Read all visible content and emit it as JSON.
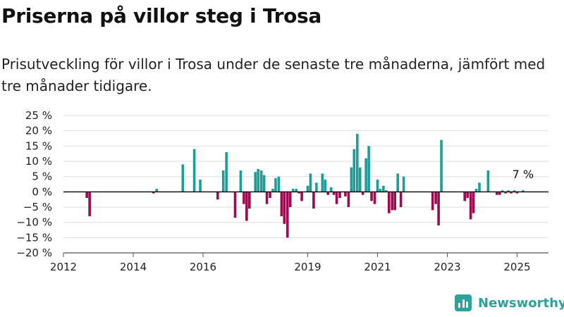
{
  "page": {
    "title": "Priserna på villor steg i Trosa",
    "subtitle": "Prisutveckling för villor i Trosa under de senaste tre månaderna, jämfört med tre månader tidigare.",
    "brand": "Newsworthy"
  },
  "colors": {
    "positive": "#1a9e97",
    "negative": "#9c0b4f",
    "brand": "#2aa398"
  },
  "chart_data": {
    "type": "bar",
    "title": "",
    "xlabel": "",
    "ylabel": "",
    "x_unit": "year",
    "xlim": [
      2012,
      2025.9
    ],
    "ylim": [
      -20,
      25
    ],
    "y_ticks": [
      25,
      20,
      15,
      10,
      5,
      0,
      -5,
      -10,
      -15,
      -20
    ],
    "y_tick_labels": [
      "25 %",
      "20 %",
      "15 %",
      "10 %",
      "5 %",
      "0 %",
      "−5 %",
      "−10 %",
      "−15 %",
      "−20 %"
    ],
    "x_ticks": [
      2012,
      2014,
      2016,
      2019,
      2021,
      2023,
      2025
    ],
    "x_tick_labels": [
      "2012",
      "2014",
      "2016",
      "2019",
      "2021",
      "2023",
      "2025"
    ],
    "grid": true,
    "annotation": "7 %",
    "x": [
      2012.67,
      2012.75,
      2014.58,
      2014.67,
      2015.42,
      2015.75,
      2015.92,
      2016.42,
      2016.58,
      2016.67,
      2016.92,
      2017.08,
      2017.17,
      2017.25,
      2017.33,
      2017.5,
      2017.58,
      2017.67,
      2017.75,
      2017.83,
      2017.92,
      2018.0,
      2018.08,
      2018.17,
      2018.25,
      2018.33,
      2018.42,
      2018.5,
      2018.58,
      2018.67,
      2018.75,
      2018.83,
      2019.0,
      2019.08,
      2019.17,
      2019.25,
      2019.42,
      2019.5,
      2019.58,
      2019.67,
      2019.75,
      2019.83,
      2019.92,
      2020.08,
      2020.17,
      2020.25,
      2020.33,
      2020.42,
      2020.5,
      2020.58,
      2020.67,
      2020.75,
      2020.83,
      2020.92,
      2021.0,
      2021.08,
      2021.17,
      2021.25,
      2021.33,
      2021.42,
      2021.5,
      2021.58,
      2021.67,
      2021.75,
      2022.58,
      2022.67,
      2022.75,
      2022.83,
      2023.5,
      2023.58,
      2023.67,
      2023.75,
      2023.83,
      2023.92,
      2024.17,
      2024.42,
      2024.5,
      2024.58,
      2024.67,
      2024.75,
      2024.83,
      2024.92,
      2025.0,
      2025.17
    ],
    "values": [
      -2,
      -8,
      -0.5,
      1,
      9,
      14,
      4,
      -2.5,
      7,
      13,
      -8.5,
      7,
      -4,
      -9.5,
      -5.5,
      6.5,
      7.5,
      7,
      5.5,
      -4,
      -2,
      1,
      4.5,
      5,
      -8,
      -10.5,
      -15,
      -5,
      1,
      1,
      -0.5,
      -3,
      2,
      6,
      -5.5,
      3,
      6,
      4,
      -1,
      1.5,
      -1,
      -4,
      -2,
      -1.5,
      -5,
      8,
      14,
      19,
      8,
      -1,
      11,
      15,
      -3,
      -4,
      4,
      1,
      2,
      0.5,
      -7,
      -6,
      -6,
      6,
      -5,
      5,
      -6,
      -4,
      -11,
      17,
      -3,
      -2,
      -9,
      -7,
      1,
      3,
      7,
      -1,
      -1,
      0.5,
      -0.5,
      0.5,
      -0.5,
      0.5,
      -0.5,
      0.5
    ]
  }
}
